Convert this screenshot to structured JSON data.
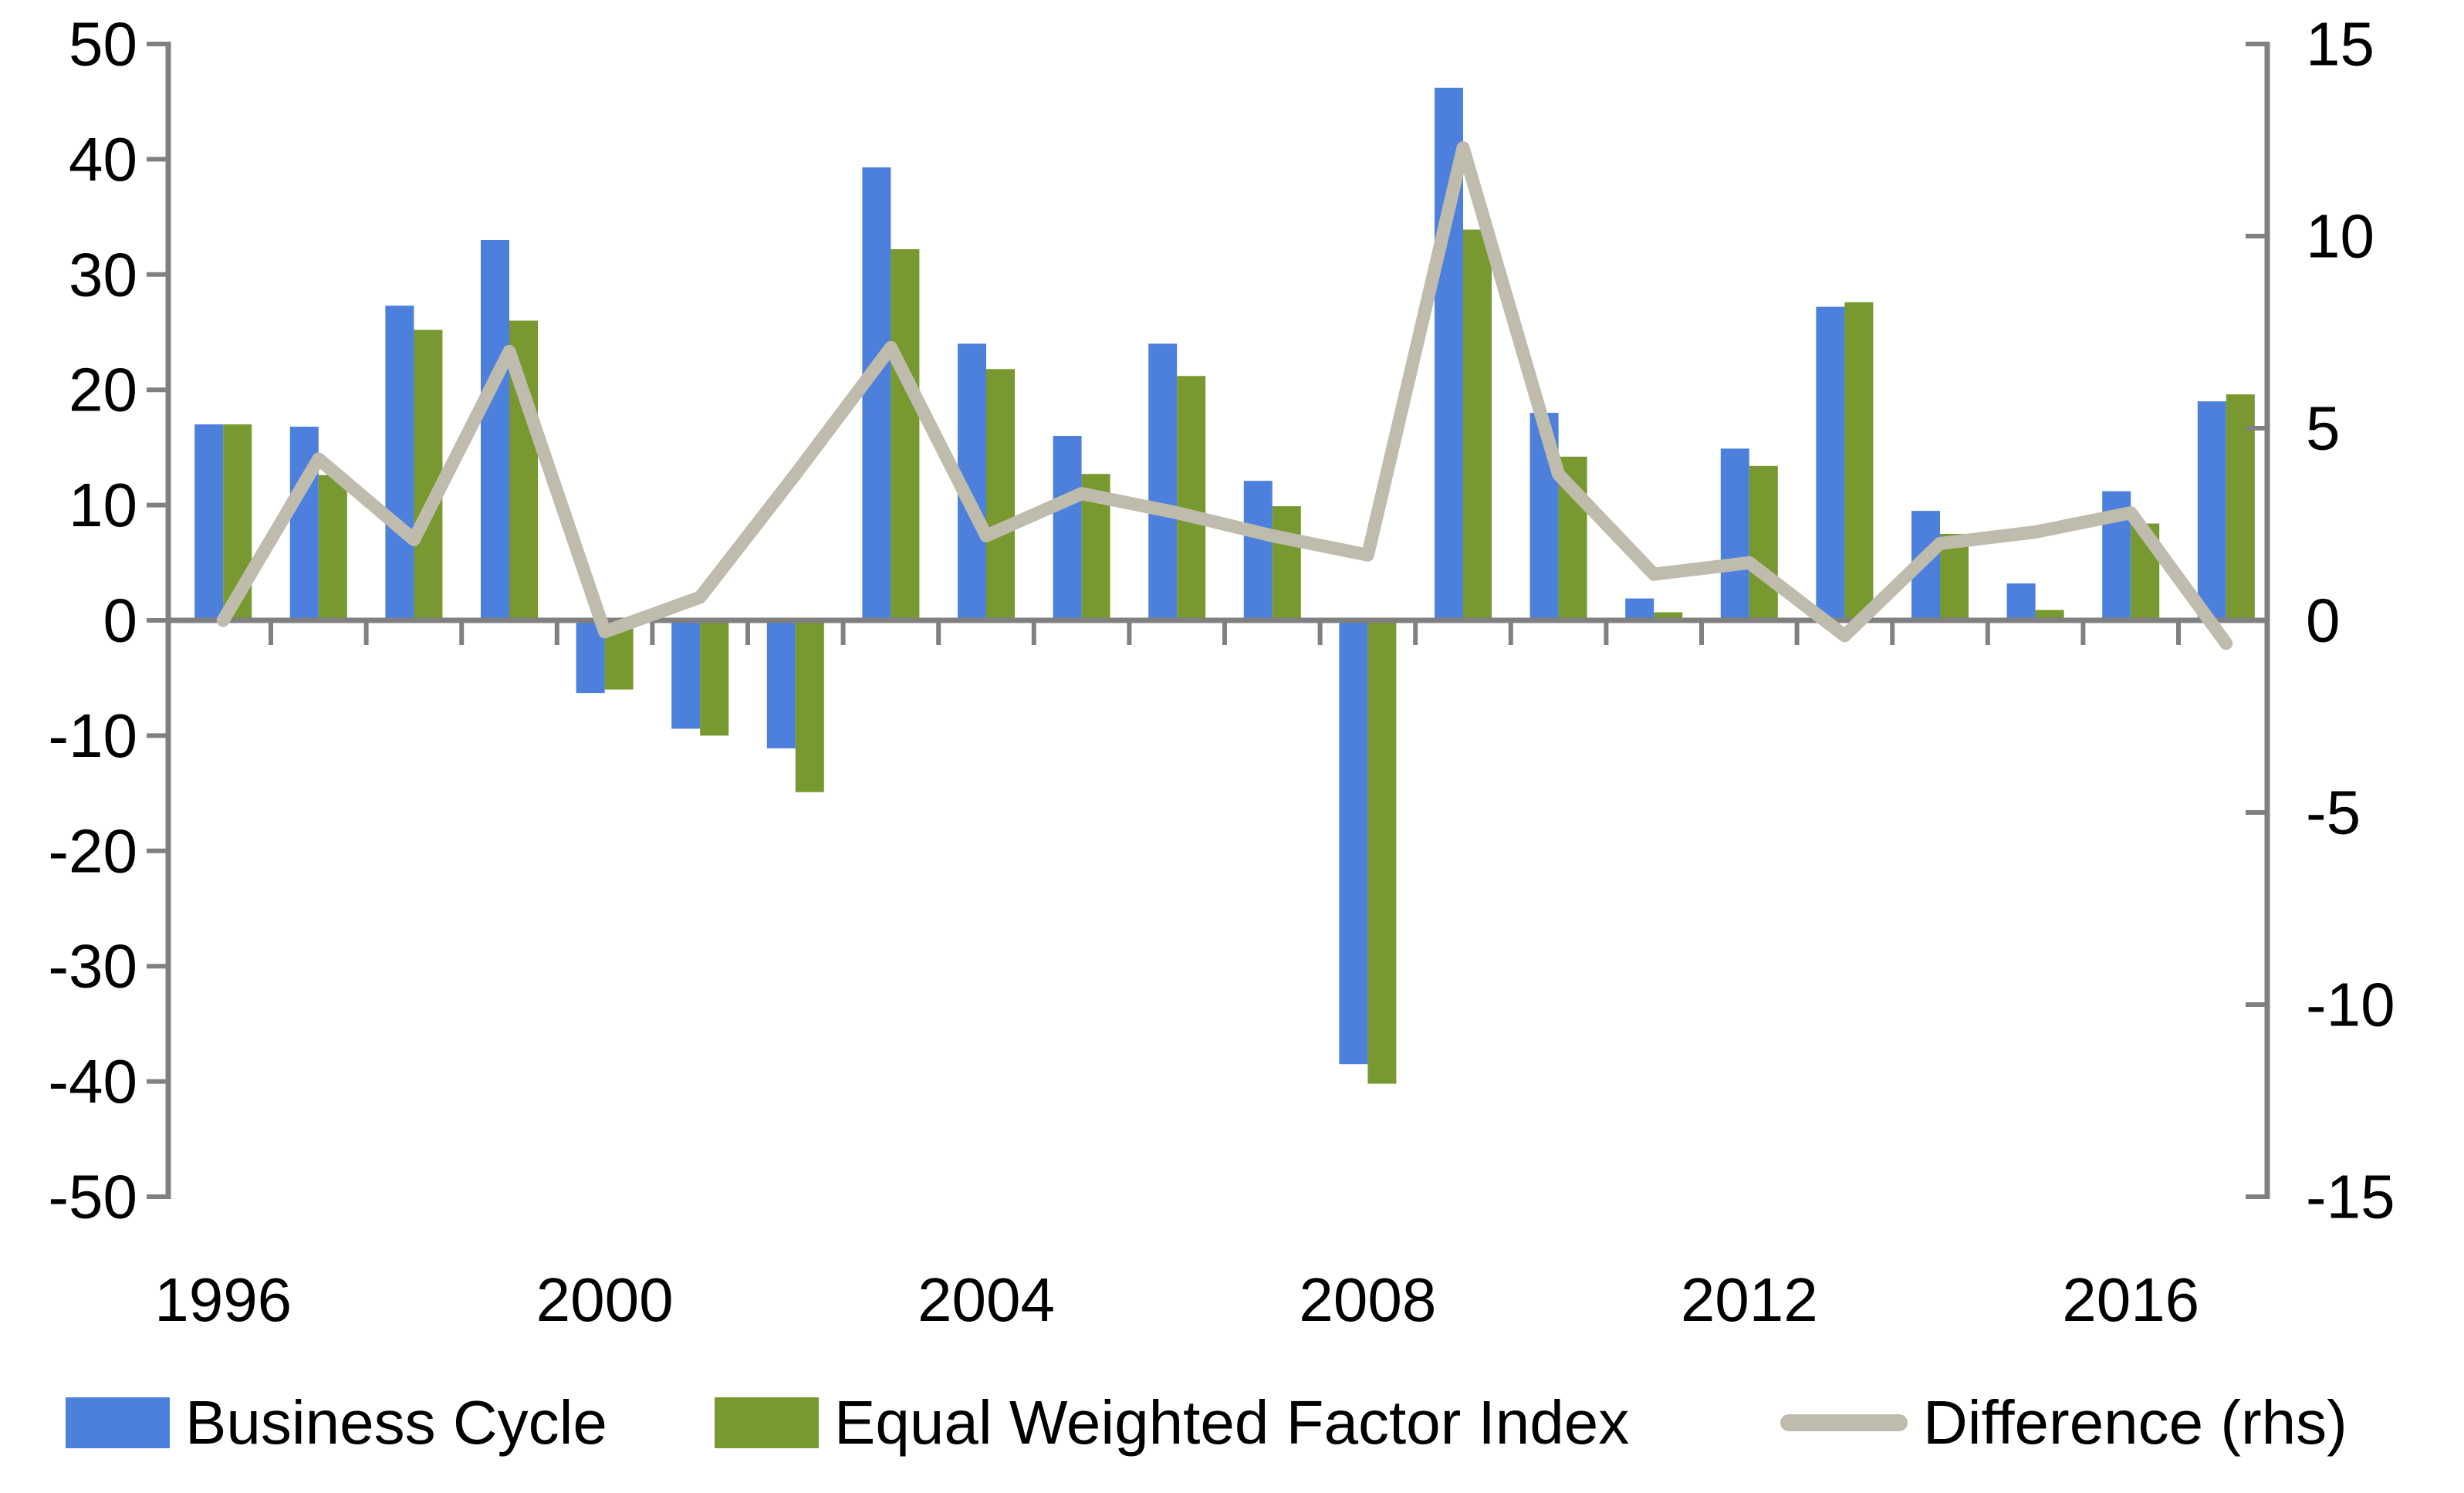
{
  "chart_data": {
    "type": "bar",
    "title": "",
    "categories": [
      1996,
      1997,
      1998,
      1999,
      2000,
      2001,
      2002,
      2003,
      2004,
      2005,
      2006,
      2007,
      2008,
      2009,
      2010,
      2011,
      2012,
      2013,
      2014,
      2015,
      2016,
      2017
    ],
    "series": [
      {
        "name": "Business Cycle",
        "type": "bar",
        "axis": "left",
        "color": "#4C80DC",
        "values": [
          17.0,
          16.8,
          27.3,
          33.0,
          -6.3,
          -9.4,
          -11.1,
          39.3,
          24.0,
          16.0,
          24.0,
          12.1,
          -38.5,
          46.2,
          18.0,
          1.9,
          14.9,
          27.2,
          9.5,
          3.2,
          11.2,
          19.0
        ]
      },
      {
        "name": "Equal Weighted Factor Index",
        "type": "bar",
        "axis": "left",
        "color": "#77992F",
        "values": [
          17.0,
          12.6,
          25.2,
          26.0,
          -6.0,
          -10.0,
          -14.9,
          32.2,
          21.8,
          12.7,
          21.2,
          9.9,
          -40.2,
          33.9,
          14.2,
          0.7,
          13.4,
          27.6,
          7.5,
          0.9,
          8.4,
          19.6
        ]
      },
      {
        "name": "Difference (rhs)",
        "type": "line",
        "axis": "right",
        "color": "#BFBCAD",
        "values": [
          0.0,
          4.2,
          2.1,
          7.0,
          -0.3,
          0.6,
          3.8,
          7.1,
          2.2,
          3.3,
          2.8,
          2.2,
          1.7,
          12.3,
          3.8,
          1.2,
          1.5,
          -0.4,
          2.0,
          2.3,
          2.8,
          -0.6
        ]
      }
    ],
    "left_axis": {
      "min": -50,
      "max": 50,
      "step": 10,
      "tick_labels": [
        "50",
        "40",
        "30",
        "20",
        "10",
        "0",
        "-10",
        "-20",
        "-30",
        "-40",
        "-50"
      ]
    },
    "right_axis": {
      "min": -15,
      "max": 15,
      "step": 5,
      "tick_labels": [
        "15",
        "10",
        "5",
        "0",
        "-5",
        "-10",
        "-15"
      ]
    },
    "x_axis": {
      "tick_labels": [
        "1996",
        "2000",
        "2004",
        "2008",
        "2012",
        "2016"
      ],
      "label_every_n_years": 4
    },
    "grid": false,
    "legend_position": "bottom",
    "axis_color": "#808080",
    "text_color": "#000000",
    "background_color": "#FFFFFF"
  }
}
